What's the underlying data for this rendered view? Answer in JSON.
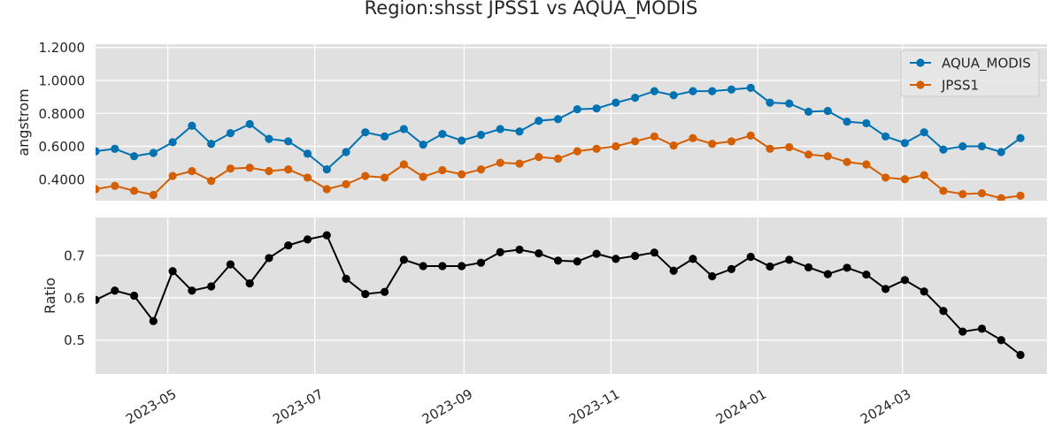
{
  "title": "Region:shsst JPSS1 vs AQUA_MODIS",
  "colors": {
    "AQUA_MODIS": "#0072B2",
    "JPSS1": "#D55E00",
    "ratio": "#000000",
    "panel_bg": "#E0E0E0",
    "grid": "#FFFFFF"
  },
  "chart_data": [
    {
      "type": "line",
      "ylabel": "angstrom",
      "ylim": [
        0.27,
        1.22
      ],
      "yticks": [
        0.4,
        0.6,
        0.8,
        1.0,
        1.2
      ],
      "ytick_labels": [
        "0.4000",
        "0.6000",
        "0.8000",
        "1.0000",
        "1.2000"
      ],
      "xlim": [
        "2023-04-01",
        "2024-04-30"
      ],
      "grid": true,
      "legend": "top-right",
      "series": [
        {
          "name": "AQUA_MODIS",
          "marker": "circle",
          "points": [
            [
              "2023-04-01",
              0.57
            ],
            [
              "2023-04-09",
              0.585
            ],
            [
              "2023-04-17",
              0.54
            ],
            [
              "2023-04-25",
              0.56
            ],
            [
              "2023-05-03",
              0.625
            ],
            [
              "2023-05-11",
              0.725
            ],
            [
              "2023-05-19",
              0.615
            ],
            [
              "2023-05-27",
              0.68
            ],
            [
              "2023-06-04",
              0.735
            ],
            [
              "2023-06-12",
              0.645
            ],
            [
              "2023-06-20",
              0.63
            ],
            [
              "2023-06-28",
              0.555
            ],
            [
              "2023-07-06",
              0.46
            ],
            [
              "2023-07-14",
              0.565
            ],
            [
              "2023-07-22",
              0.685
            ],
            [
              "2023-07-30",
              0.66
            ],
            [
              "2023-08-07",
              0.705
            ],
            [
              "2023-08-15",
              0.61
            ],
            [
              "2023-08-23",
              0.675
            ],
            [
              "2023-08-31",
              0.635
            ],
            [
              "2023-09-08",
              0.67
            ],
            [
              "2023-09-16",
              0.705
            ],
            [
              "2023-09-24",
              0.69
            ],
            [
              "2023-10-02",
              0.755
            ],
            [
              "2023-10-10",
              0.765
            ],
            [
              "2023-10-18",
              0.825
            ],
            [
              "2023-10-26",
              0.83
            ],
            [
              "2023-11-03",
              0.865
            ],
            [
              "2023-11-11",
              0.895
            ],
            [
              "2023-11-19",
              0.935
            ],
            [
              "2023-11-27",
              0.91
            ],
            [
              "2023-12-05",
              0.935
            ],
            [
              "2023-12-13",
              0.935
            ],
            [
              "2023-12-21",
              0.945
            ],
            [
              "2023-12-29",
              0.955
            ],
            [
              "2024-01-06",
              0.865
            ],
            [
              "2024-01-14",
              0.86
            ],
            [
              "2024-01-22",
              0.81
            ],
            [
              "2024-01-30",
              0.815
            ],
            [
              "2024-02-07",
              0.75
            ],
            [
              "2024-02-15",
              0.74
            ],
            [
              "2024-02-23",
              0.66
            ],
            [
              "2024-03-02",
              0.62
            ],
            [
              "2024-03-10",
              0.685
            ],
            [
              "2024-03-18",
              0.58
            ],
            [
              "2024-03-26",
              0.6
            ],
            [
              "2024-04-03",
              0.6
            ],
            [
              "2024-04-11",
              0.565
            ],
            [
              "2024-04-19",
              0.65
            ]
          ]
        },
        {
          "name": "JPSS1",
          "marker": "circle",
          "points": [
            [
              "2023-04-01",
              0.34
            ],
            [
              "2023-04-09",
              0.36
            ],
            [
              "2023-04-17",
              0.33
            ],
            [
              "2023-04-25",
              0.305
            ],
            [
              "2023-05-03",
              0.42
            ],
            [
              "2023-05-11",
              0.45
            ],
            [
              "2023-05-19",
              0.39
            ],
            [
              "2023-05-27",
              0.465
            ],
            [
              "2023-06-04",
              0.47
            ],
            [
              "2023-06-12",
              0.45
            ],
            [
              "2023-06-20",
              0.46
            ],
            [
              "2023-06-28",
              0.41
            ],
            [
              "2023-07-06",
              0.34
            ],
            [
              "2023-07-14",
              0.37
            ],
            [
              "2023-07-22",
              0.42
            ],
            [
              "2023-07-30",
              0.41
            ],
            [
              "2023-08-07",
              0.49
            ],
            [
              "2023-08-15",
              0.415
            ],
            [
              "2023-08-23",
              0.455
            ],
            [
              "2023-08-31",
              0.43
            ],
            [
              "2023-09-08",
              0.46
            ],
            [
              "2023-09-16",
              0.5
            ],
            [
              "2023-09-24",
              0.495
            ],
            [
              "2023-10-02",
              0.535
            ],
            [
              "2023-10-10",
              0.525
            ],
            [
              "2023-10-18",
              0.57
            ],
            [
              "2023-10-26",
              0.585
            ],
            [
              "2023-11-03",
              0.6
            ],
            [
              "2023-11-11",
              0.63
            ],
            [
              "2023-11-19",
              0.66
            ],
            [
              "2023-11-27",
              0.605
            ],
            [
              "2023-12-05",
              0.65
            ],
            [
              "2023-12-13",
              0.615
            ],
            [
              "2023-12-21",
              0.63
            ],
            [
              "2023-12-29",
              0.665
            ],
            [
              "2024-01-06",
              0.585
            ],
            [
              "2024-01-14",
              0.595
            ],
            [
              "2024-01-22",
              0.55
            ],
            [
              "2024-01-30",
              0.54
            ],
            [
              "2024-02-07",
              0.505
            ],
            [
              "2024-02-15",
              0.49
            ],
            [
              "2024-02-23",
              0.41
            ],
            [
              "2024-03-02",
              0.4
            ],
            [
              "2024-03-10",
              0.425
            ],
            [
              "2024-03-18",
              0.33
            ],
            [
              "2024-03-26",
              0.31
            ],
            [
              "2024-04-03",
              0.315
            ],
            [
              "2024-04-11",
              0.285
            ],
            [
              "2024-04-19",
              0.3
            ]
          ]
        }
      ]
    },
    {
      "type": "line",
      "ylabel": "Ratio",
      "ylim": [
        0.42,
        0.79
      ],
      "yticks": [
        0.5,
        0.6,
        0.7
      ],
      "ytick_labels": [
        "0.5",
        "0.6",
        "0.7"
      ],
      "xlim": [
        "2023-04-01",
        "2024-04-30"
      ],
      "xticks": [
        "2023-05-01",
        "2023-07-01",
        "2023-09-01",
        "2023-11-01",
        "2024-01-01",
        "2024-03-01"
      ],
      "xtick_labels": [
        "2023-05",
        "2023-07",
        "2023-09",
        "2023-11",
        "2024-01",
        "2024-03"
      ],
      "grid": true,
      "series": [
        {
          "marker": "circle",
          "points": [
            [
              "2023-04-01",
              0.595
            ],
            [
              "2023-04-09",
              0.617
            ],
            [
              "2023-04-17",
              0.605
            ],
            [
              "2023-04-25",
              0.545
            ],
            [
              "2023-05-03",
              0.663
            ],
            [
              "2023-05-11",
              0.617
            ],
            [
              "2023-05-19",
              0.627
            ],
            [
              "2023-05-27",
              0.679
            ],
            [
              "2023-06-04",
              0.634
            ],
            [
              "2023-06-12",
              0.694
            ],
            [
              "2023-06-20",
              0.724
            ],
            [
              "2023-06-28",
              0.738
            ],
            [
              "2023-07-06",
              0.748
            ],
            [
              "2023-07-14",
              0.645
            ],
            [
              "2023-07-22",
              0.609
            ],
            [
              "2023-07-30",
              0.614
            ],
            [
              "2023-08-07",
              0.69
            ],
            [
              "2023-08-15",
              0.675
            ],
            [
              "2023-08-23",
              0.675
            ],
            [
              "2023-08-31",
              0.675
            ],
            [
              "2023-09-08",
              0.683
            ],
            [
              "2023-09-16",
              0.708
            ],
            [
              "2023-09-24",
              0.714
            ],
            [
              "2023-10-02",
              0.705
            ],
            [
              "2023-10-10",
              0.688
            ],
            [
              "2023-10-18",
              0.686
            ],
            [
              "2023-10-26",
              0.704
            ],
            [
              "2023-11-03",
              0.692
            ],
            [
              "2023-11-11",
              0.699
            ],
            [
              "2023-11-19",
              0.707
            ],
            [
              "2023-11-27",
              0.664
            ],
            [
              "2023-12-05",
              0.692
            ],
            [
              "2023-12-13",
              0.651
            ],
            [
              "2023-12-21",
              0.668
            ],
            [
              "2023-12-29",
              0.697
            ],
            [
              "2024-01-06",
              0.674
            ],
            [
              "2024-01-14",
              0.69
            ],
            [
              "2024-01-22",
              0.672
            ],
            [
              "2024-01-30",
              0.656
            ],
            [
              "2024-02-07",
              0.671
            ],
            [
              "2024-02-15",
              0.655
            ],
            [
              "2024-02-23",
              0.621
            ],
            [
              "2024-03-02",
              0.642
            ],
            [
              "2024-03-10",
              0.615
            ],
            [
              "2024-03-18",
              0.569
            ],
            [
              "2024-03-26",
              0.52
            ],
            [
              "2024-04-03",
              0.527
            ],
            [
              "2024-04-11",
              0.5
            ],
            [
              "2024-04-19",
              0.465
            ]
          ]
        }
      ]
    }
  ]
}
